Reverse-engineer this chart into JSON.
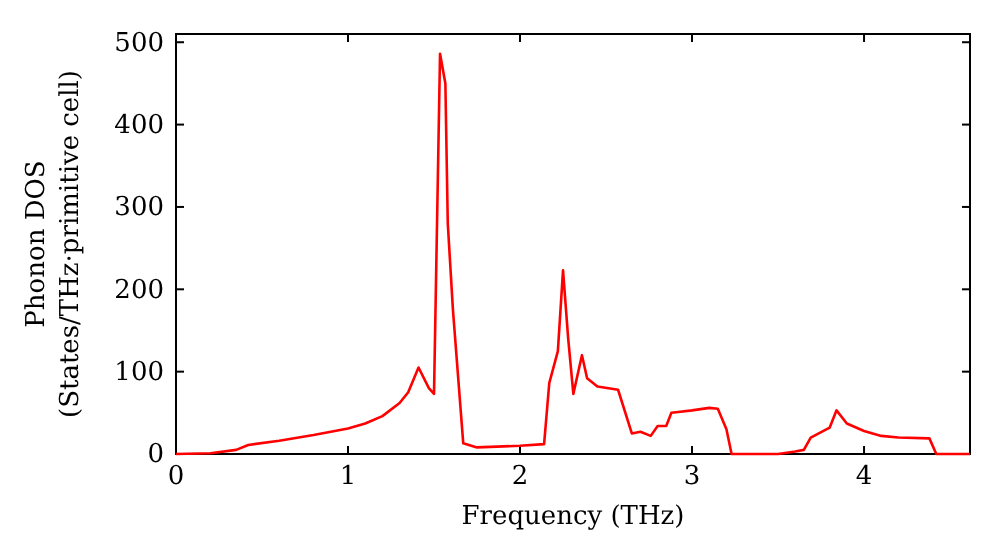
{
  "chart_data": {
    "type": "line",
    "xlabel": "Frequency (THz)",
    "ylabel": "Phonon DOS\n(States/THz·primitive cell)",
    "x": [
      0,
      0.2,
      0.35,
      0.42,
      0.6,
      0.8,
      1.0,
      1.1,
      1.2,
      1.3,
      1.35,
      1.41,
      1.47,
      1.5,
      1.535,
      1.566,
      1.58,
      1.61,
      1.67,
      1.75,
      2.0,
      2.14,
      2.17,
      2.22,
      2.25,
      2.28,
      2.31,
      2.36,
      2.39,
      2.45,
      2.57,
      2.65,
      2.7,
      2.76,
      2.8,
      2.85,
      2.88,
      2.92,
      3.0,
      3.1,
      3.15,
      3.2,
      3.23,
      3.5,
      3.6,
      3.65,
      3.69,
      3.8,
      3.84,
      3.9,
      4.0,
      4.1,
      4.2,
      4.38,
      4.42,
      4.616
    ],
    "series": [
      {
        "color": "#ff0000",
        "values": [
          0,
          1,
          5,
          11,
          16,
          23,
          31,
          37,
          46,
          62,
          75,
          105,
          80,
          73,
          486,
          450,
          280,
          175,
          13,
          8,
          10,
          12,
          86,
          125,
          223,
          140,
          73,
          120,
          92,
          82,
          78,
          25,
          27,
          22,
          34,
          34,
          50,
          51,
          53,
          56,
          55,
          30,
          0,
          0,
          3,
          5,
          20,
          32,
          53,
          37,
          28,
          22,
          20,
          19,
          0,
          0
        ]
      }
    ],
    "xlim": [
      0,
      4.616
    ],
    "ylim": [
      0,
      510
    ],
    "xticks": [
      0,
      1,
      2,
      3,
      4
    ],
    "yticks": [
      0,
      100,
      200,
      300,
      400,
      500
    ],
    "marker": "none",
    "line_style": "solid"
  }
}
